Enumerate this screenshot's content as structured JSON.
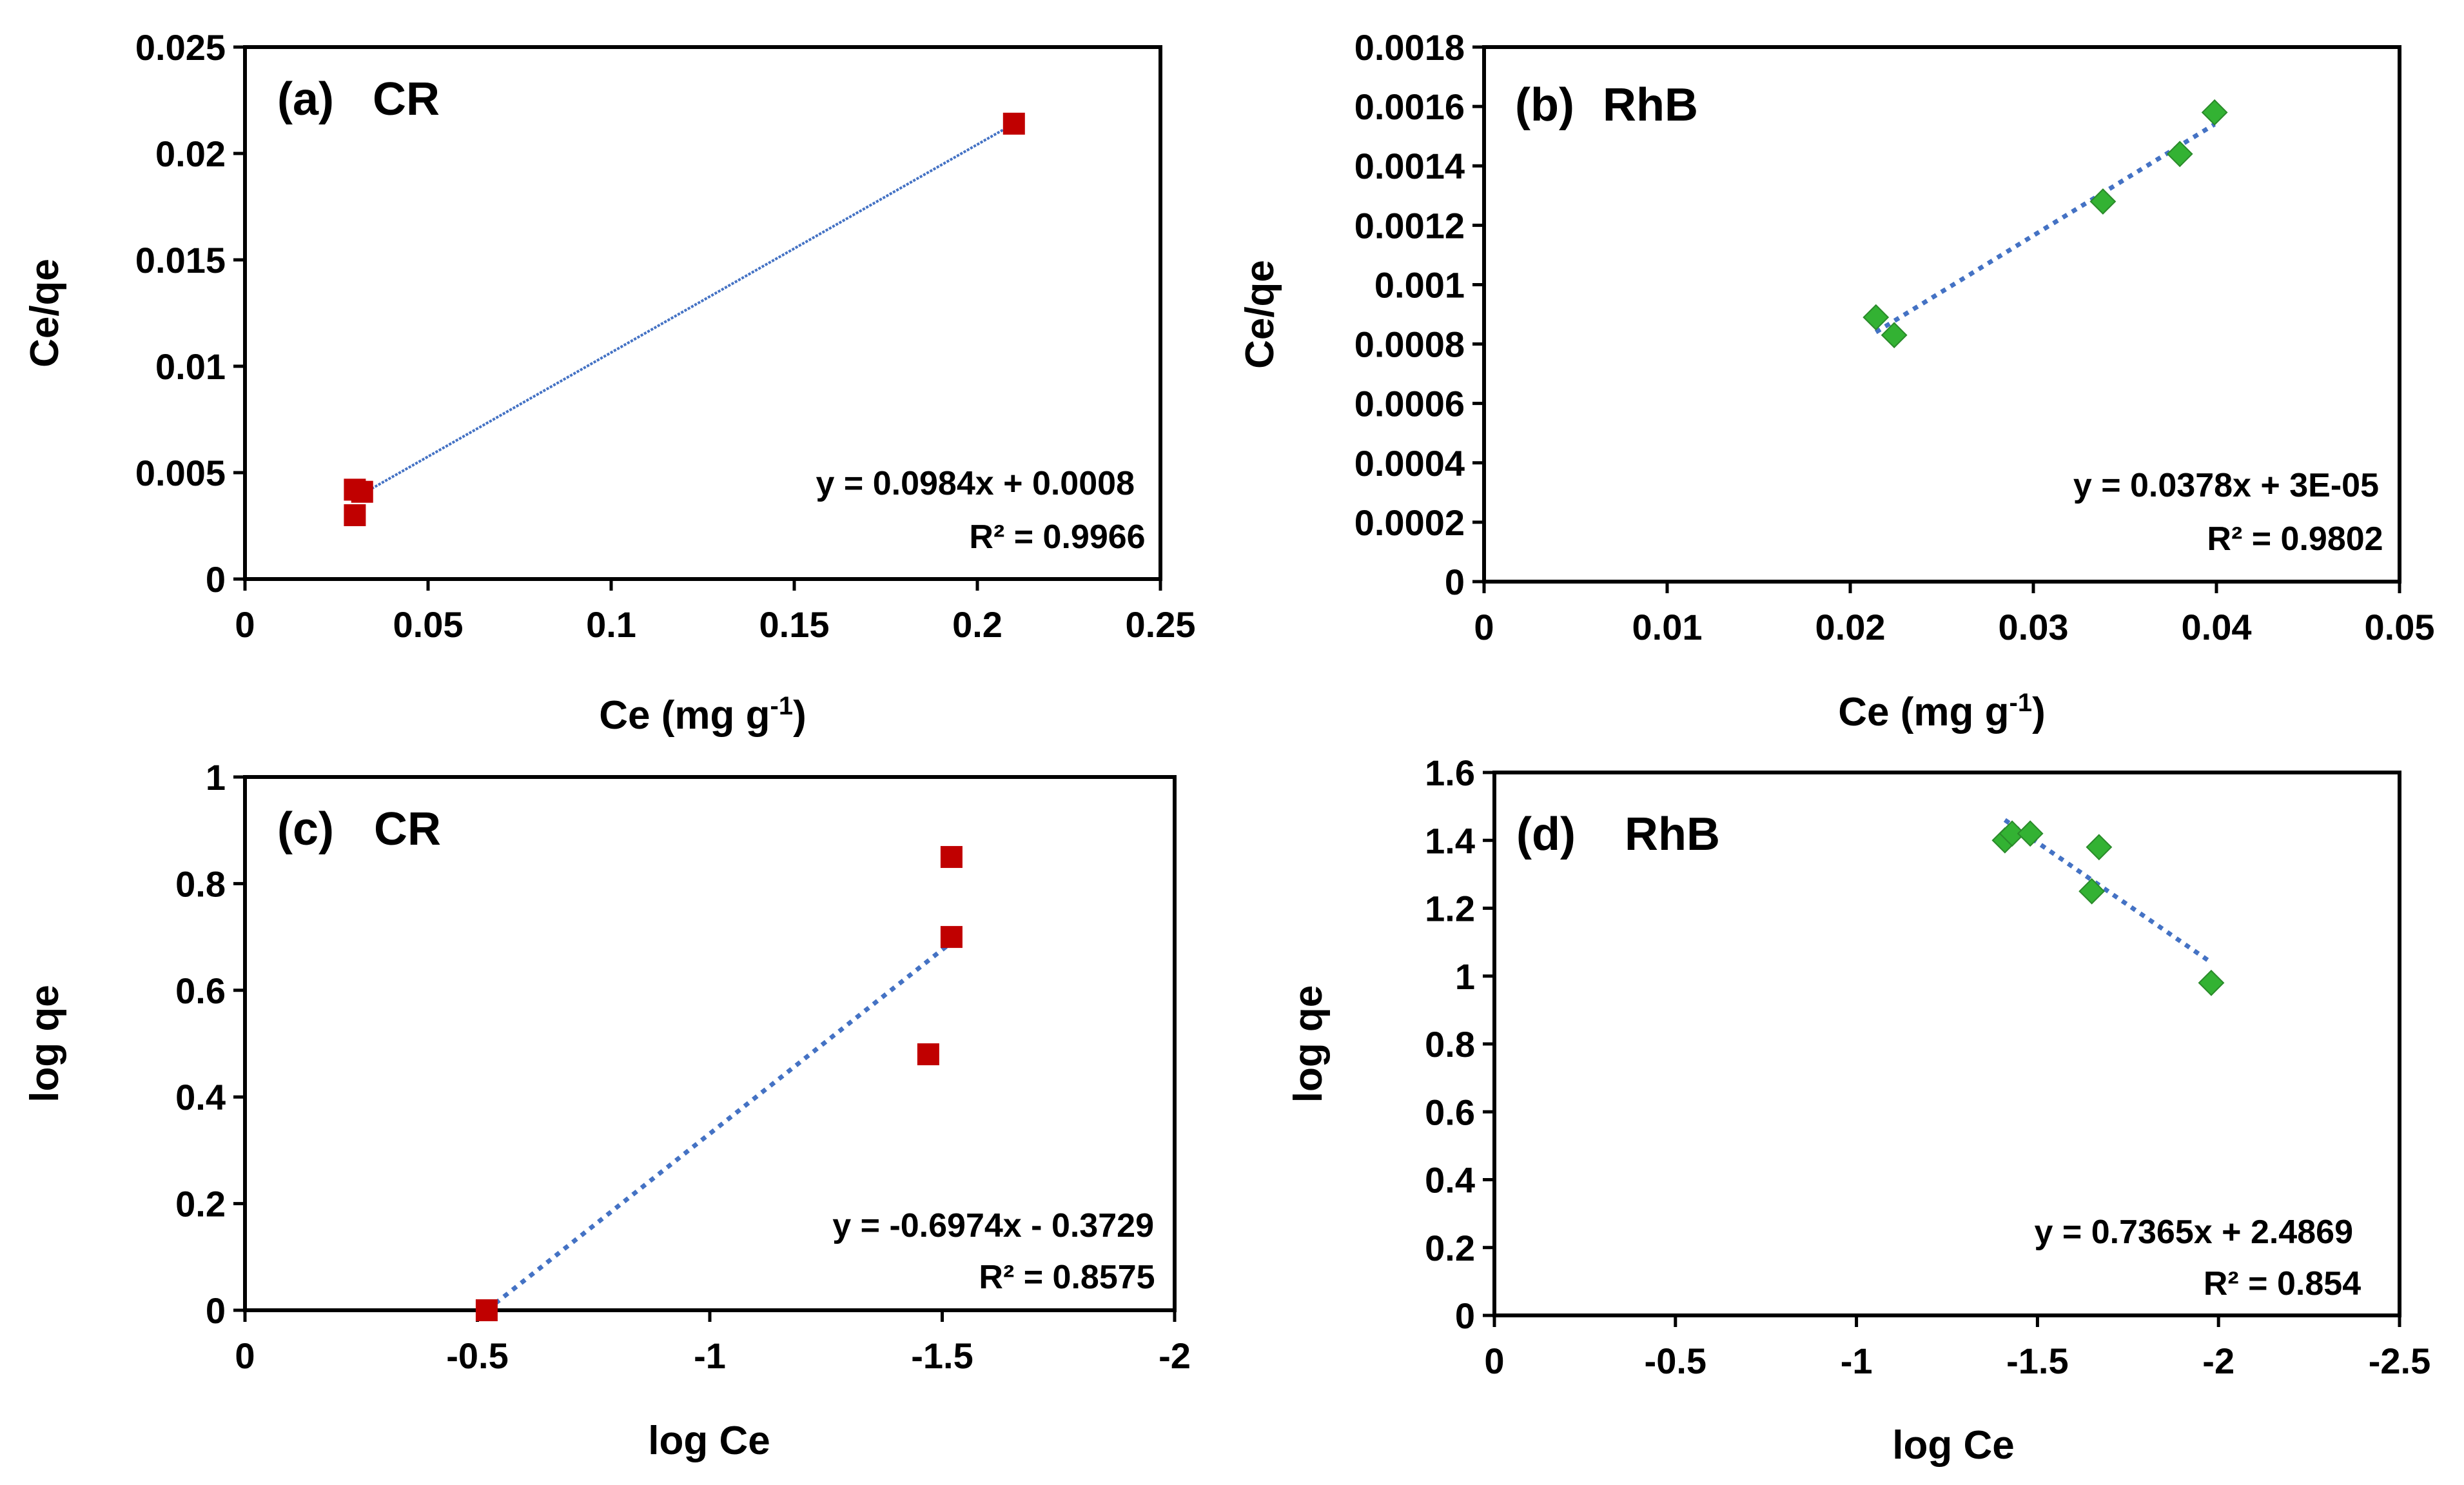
{
  "colors": {
    "cr_marker": "#c00000",
    "rhb_marker": "#33b233",
    "rhb_marker_edge": "#2a8a2a",
    "trendline": "#4472c4",
    "axis": "#000000"
  },
  "chart_data": [
    {
      "id": "a",
      "type": "scatter",
      "panel_label": "(a)",
      "dye": "CR",
      "xlabel": "Ce (mg g",
      "xlabel_sup": "-1",
      "xlabel_close": ")",
      "ylabel": "Ce/qe",
      "xlim": [
        0,
        0.25
      ],
      "ylim": [
        0,
        0.025
      ],
      "x_reversed": false,
      "xticks": [
        0,
        0.05,
        0.1,
        0.15,
        0.2,
        0.25
      ],
      "xtick_labels": [
        "0",
        "0.05",
        "0.1",
        "0.15",
        "0.2",
        "0.25"
      ],
      "yticks": [
        0,
        0.005,
        0.01,
        0.015,
        0.02,
        0.025
      ],
      "ytick_labels": [
        "0",
        "0.005",
        "0.01",
        "0.015",
        "0.02",
        "0.025"
      ],
      "marker": "square",
      "points": [
        {
          "x": 0.03,
          "y": 0.0042
        },
        {
          "x": 0.032,
          "y": 0.0041
        },
        {
          "x": 0.03,
          "y": 0.003
        },
        {
          "x": 0.21,
          "y": 0.0214
        }
      ],
      "trendline": {
        "x0": 0.03,
        "y0": 0.0038,
        "x1": 0.21,
        "y1": 0.0214,
        "style": "dense"
      },
      "equation": "y = 0.0984x + 0.0008",
      "r2": "R² = 0.9966"
    },
    {
      "id": "b",
      "type": "scatter",
      "panel_label": "(b)",
      "dye": "RhB",
      "xlabel": "Ce (mg g",
      "xlabel_sup": "-1",
      "xlabel_close": ")",
      "ylabel": "Ce/qe",
      "xlim": [
        0,
        0.05
      ],
      "ylim": [
        0,
        0.0018
      ],
      "x_reversed": false,
      "xticks": [
        0,
        0.01,
        0.02,
        0.03,
        0.04,
        0.05
      ],
      "xtick_labels": [
        "0",
        "0.01",
        "0.02",
        "0.03",
        "0.04",
        "0.05"
      ],
      "yticks": [
        0,
        0.0002,
        0.0004,
        0.0006,
        0.0008,
        0.001,
        0.0012,
        0.0014,
        0.0016,
        0.0018
      ],
      "ytick_labels": [
        "0",
        "0.0002",
        "0.0004",
        "0.0006",
        "0.0008",
        "0.001",
        "0.0012",
        "0.0014",
        "0.0016",
        "0.0018"
      ],
      "marker": "diamond",
      "points": [
        {
          "x": 0.0214,
          "y": 0.00089
        },
        {
          "x": 0.0224,
          "y": 0.00083
        },
        {
          "x": 0.0338,
          "y": 0.00128
        },
        {
          "x": 0.038,
          "y": 0.00144
        },
        {
          "x": 0.0399,
          "y": 0.00158
        }
      ],
      "trendline": {
        "x0": 0.0214,
        "y0": 0.00084,
        "x1": 0.0399,
        "y1": 0.00154,
        "style": "dotted"
      },
      "equation": "y = 0.0378x + 3E-05",
      "r2": "R² = 0.9802"
    },
    {
      "id": "c",
      "type": "scatter",
      "panel_label": "(c)",
      "dye": "CR",
      "xlabel": "log Ce",
      "xlabel_sup": "",
      "xlabel_close": "",
      "ylabel": "log qe",
      "xlim": [
        0,
        -2
      ],
      "ylim": [
        0,
        1
      ],
      "x_reversed": true,
      "xticks": [
        0,
        -0.5,
        -1,
        -1.5,
        -2
      ],
      "xtick_labels": [
        "0",
        "-0.5",
        "-1",
        "-1.5",
        "-2"
      ],
      "yticks": [
        0,
        0.2,
        0.4,
        0.6,
        0.8,
        1
      ],
      "ytick_labels": [
        "0",
        "0.2",
        "0.4",
        "0.6",
        "0.8",
        "1"
      ],
      "marker": "square",
      "points": [
        {
          "x": -0.52,
          "y": 0.0
        },
        {
          "x": -1.47,
          "y": 0.48
        },
        {
          "x": -1.52,
          "y": 0.7
        },
        {
          "x": -1.52,
          "y": 0.85
        }
      ],
      "trendline": {
        "x0": -0.52,
        "y0": 0.0,
        "x1": -1.52,
        "y1": 0.69,
        "style": "dotted"
      },
      "equation": "y = -0.6974x - 0.3729",
      "r2": "R² = 0.8575"
    },
    {
      "id": "d",
      "type": "scatter",
      "panel_label": "(d)",
      "dye": "RhB",
      "xlabel": "log Ce",
      "xlabel_sup": "",
      "xlabel_close": "",
      "ylabel": "log qe",
      "xlim": [
        0,
        -2.5
      ],
      "ylim": [
        0,
        1.6
      ],
      "x_reversed": true,
      "xticks": [
        0,
        -0.5,
        -1,
        -1.5,
        -2,
        -2.5
      ],
      "xtick_labels": [
        "0",
        "-0.5",
        "-1",
        "-1.5",
        "-2",
        "-2.5"
      ],
      "yticks": [
        0,
        0.2,
        0.4,
        0.6,
        0.8,
        1,
        1.2,
        1.4,
        1.6
      ],
      "ytick_labels": [
        "0",
        "0.2",
        "0.4",
        "0.6",
        "0.8",
        "1",
        "1.2",
        "1.4",
        "1.6"
      ],
      "marker": "diamond",
      "points": [
        {
          "x": -1.41,
          "y": 1.4
        },
        {
          "x": -1.43,
          "y": 1.42
        },
        {
          "x": -1.48,
          "y": 1.42
        },
        {
          "x": -1.65,
          "y": 1.25
        },
        {
          "x": -1.67,
          "y": 1.38
        },
        {
          "x": -1.98,
          "y": 0.98
        }
      ],
      "trendline": {
        "x0": -1.41,
        "y0": 1.46,
        "x1": -1.98,
        "y1": 1.04,
        "style": "dotted"
      },
      "equation": "y = 0.7365x + 2.4869",
      "r2": "R² = 0.854"
    }
  ]
}
